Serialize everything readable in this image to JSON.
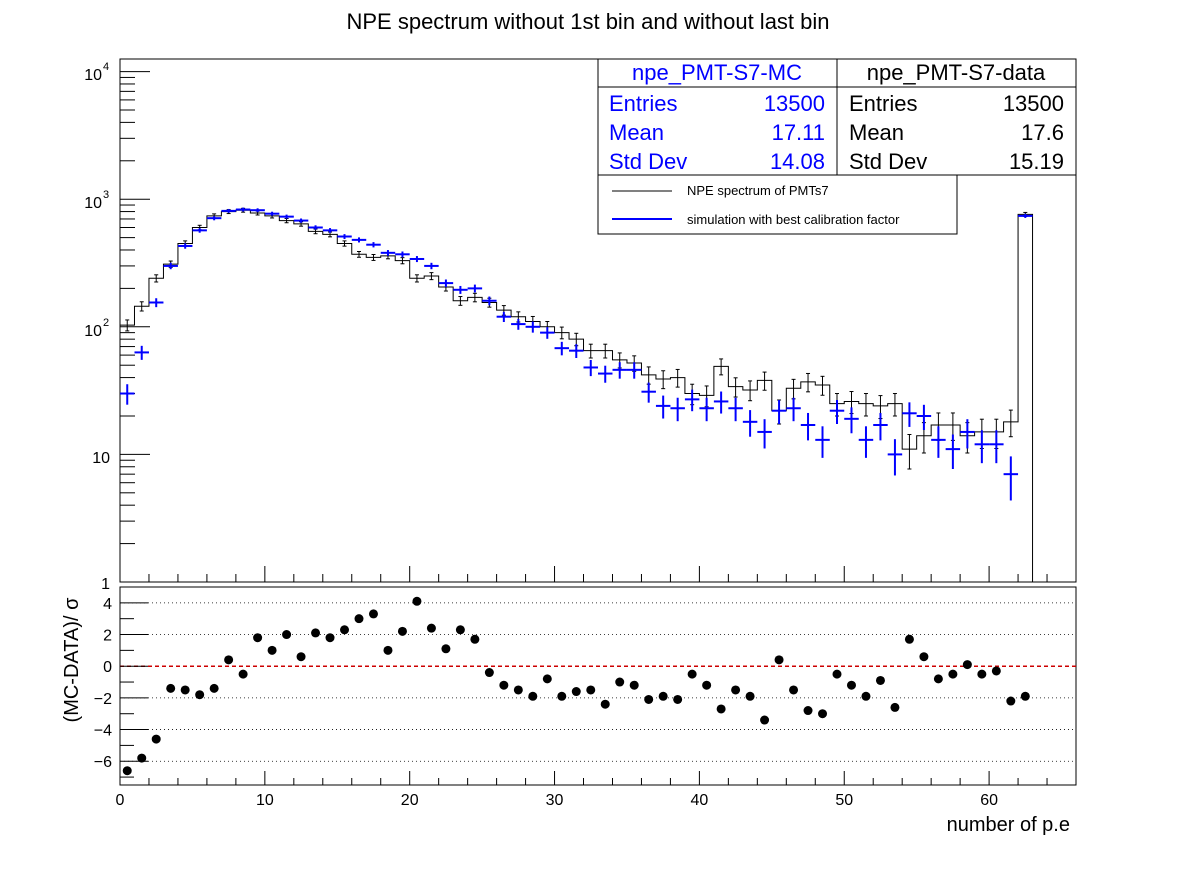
{
  "chart_data": [
    {
      "type": "histogram",
      "title": "NPE spectrum without 1st bin and without last bin",
      "xlim": [
        0,
        66
      ],
      "ylim": [
        1,
        14000
      ],
      "yscale": "log",
      "ytick_labels": [
        "1",
        "10",
        "10",
        "10",
        "10"
      ],
      "ytick_exponents": [
        "",
        "",
        "2",
        "3",
        "4"
      ],
      "data_series": {
        "name": "npe_PMT-S7-data",
        "x": [
          0.5,
          1.5,
          2.5,
          3.5,
          4.5,
          5.5,
          6.5,
          7.5,
          8.5,
          9.5,
          10.5,
          11.5,
          12.5,
          13.5,
          14.5,
          15.5,
          16.5,
          17.5,
          18.5,
          19.5,
          20.5,
          21.5,
          22.5,
          23.5,
          24.5,
          25.5,
          26.5,
          27.5,
          28.5,
          29.5,
          30.5,
          31.5,
          32.5,
          33.5,
          34.5,
          35.5,
          36.5,
          37.5,
          38.5,
          39.5,
          40.5,
          41.5,
          42.5,
          43.5,
          44.5,
          45.5,
          46.5,
          47.5,
          48.5,
          49.5,
          50.5,
          51.5,
          52.5,
          53.5,
          54.5,
          55.5,
          56.5,
          57.5,
          58.5,
          59.5,
          60.5,
          61.5,
          62.5
        ],
        "values": [
          103,
          145,
          240,
          310,
          450,
          600,
          740,
          800,
          820,
          780,
          740,
          680,
          640,
          560,
          530,
          450,
          370,
          350,
          360,
          330,
          240,
          250,
          205,
          160,
          170,
          155,
          135,
          120,
          110,
          100,
          90,
          80,
          65,
          65,
          55,
          52,
          42,
          39,
          40,
          30,
          29,
          49,
          34,
          32,
          38,
          22,
          33,
          37,
          35,
          25,
          26,
          25,
          24,
          25,
          11,
          14,
          17,
          17,
          14,
          15,
          15,
          18,
          760
        ]
      },
      "mc_series": {
        "name": "npe_PMT-S7-MC",
        "x": [
          0.5,
          1.5,
          2.5,
          3.5,
          4.5,
          5.5,
          6.5,
          7.5,
          8.5,
          9.5,
          10.5,
          11.5,
          12.5,
          13.5,
          14.5,
          15.5,
          16.5,
          17.5,
          18.5,
          19.5,
          20.5,
          21.5,
          22.5,
          23.5,
          24.5,
          25.5,
          26.5,
          27.5,
          28.5,
          29.5,
          30.5,
          31.5,
          32.5,
          33.5,
          34.5,
          35.5,
          36.5,
          37.5,
          38.5,
          39.5,
          40.5,
          41.5,
          42.5,
          43.5,
          44.5,
          45.5,
          46.5,
          47.5,
          48.5,
          49.5,
          50.5,
          51.5,
          52.5,
          53.5,
          54.5,
          55.5,
          56.5,
          57.5,
          58.5,
          59.5,
          60.5,
          61.5,
          62.5
        ],
        "values": [
          30,
          63,
          155,
          300,
          430,
          570,
          710,
          810,
          830,
          820,
          770,
          730,
          680,
          600,
          570,
          510,
          480,
          440,
          380,
          370,
          340,
          300,
          220,
          195,
          200,
          160,
          120,
          105,
          100,
          90,
          68,
          65,
          48,
          43,
          46,
          46,
          31,
          24,
          23,
          27,
          23,
          26,
          23,
          18,
          15,
          22,
          23,
          17,
          13,
          22,
          19,
          13,
          17,
          10,
          21,
          20,
          13,
          11,
          15,
          12,
          12,
          7,
          740
        ]
      },
      "statsbox_mc": {
        "title": "npe_PMT-S7-MC",
        "rows": [
          {
            "label": "Entries",
            "value": "13500"
          },
          {
            "label": "Mean",
            "value": "17.11"
          },
          {
            "label": "Std Dev",
            "value": "14.08"
          }
        ]
      },
      "statsbox_data": {
        "title": "npe_PMT-S7-data",
        "rows": [
          {
            "label": "Entries",
            "value": "13500"
          },
          {
            "label": "Mean",
            "value": "17.6"
          },
          {
            "label": "Std Dev",
            "value": "15.19"
          }
        ]
      },
      "legend": [
        {
          "label": "NPE spectrum of PMTs7",
          "color": "#000000"
        },
        {
          "label": "simulation with best calibration factor",
          "color": "#0000ff"
        }
      ],
      "colors": {
        "data": "#000000",
        "mc": "#0000ff",
        "residual_zero": "#cc0000"
      }
    },
    {
      "type": "scatter",
      "ylabel": "(MC-DATA)/ σ",
      "xlabel": "number of p.e",
      "xlim": [
        0,
        66
      ],
      "ylim": [
        -7.5,
        5
      ],
      "yticks": [
        -6,
        -4,
        -2,
        0,
        2,
        4
      ],
      "xticks": [
        0,
        10,
        20,
        30,
        40,
        50,
        60
      ],
      "x": [
        0.5,
        1.5,
        2.5,
        3.5,
        4.5,
        5.5,
        6.5,
        7.5,
        8.5,
        9.5,
        10.5,
        11.5,
        12.5,
        13.5,
        14.5,
        15.5,
        16.5,
        17.5,
        18.5,
        19.5,
        20.5,
        21.5,
        22.5,
        23.5,
        24.5,
        25.5,
        26.5,
        27.5,
        28.5,
        29.5,
        30.5,
        31.5,
        32.5,
        33.5,
        34.5,
        35.5,
        36.5,
        37.5,
        38.5,
        39.5,
        40.5,
        41.5,
        42.5,
        43.5,
        44.5,
        45.5,
        46.5,
        47.5,
        48.5,
        49.5,
        50.5,
        51.5,
        52.5,
        53.5,
        54.5,
        55.5,
        56.5,
        57.5,
        58.5,
        59.5,
        60.5,
        61.5,
        62.5
      ],
      "y": [
        -6.6,
        -5.8,
        -4.6,
        -1.4,
        -1.5,
        -1.8,
        -1.4,
        0.4,
        -0.5,
        1.8,
        1.0,
        2.0,
        0.6,
        2.1,
        1.8,
        2.3,
        3.0,
        3.3,
        1.0,
        2.2,
        4.1,
        2.4,
        1.1,
        2.3,
        1.7,
        -0.4,
        -1.2,
        -1.5,
        -1.9,
        -0.8,
        -1.9,
        -1.6,
        -1.5,
        -2.4,
        -1.0,
        -1.2,
        -2.1,
        -1.9,
        -2.1,
        -0.5,
        -1.2,
        -2.7,
        -1.5,
        -1.9,
        -3.4,
        0.4,
        -1.5,
        -2.8,
        -3.0,
        -0.5,
        -1.2,
        -1.9,
        -0.9,
        -2.6,
        1.7,
        0.6,
        -0.8,
        -0.5,
        0.1,
        -0.5,
        -0.3,
        -2.2,
        -1.9
      ],
      "grid_lines": [
        -6,
        -4,
        -2,
        2,
        4
      ]
    }
  ]
}
